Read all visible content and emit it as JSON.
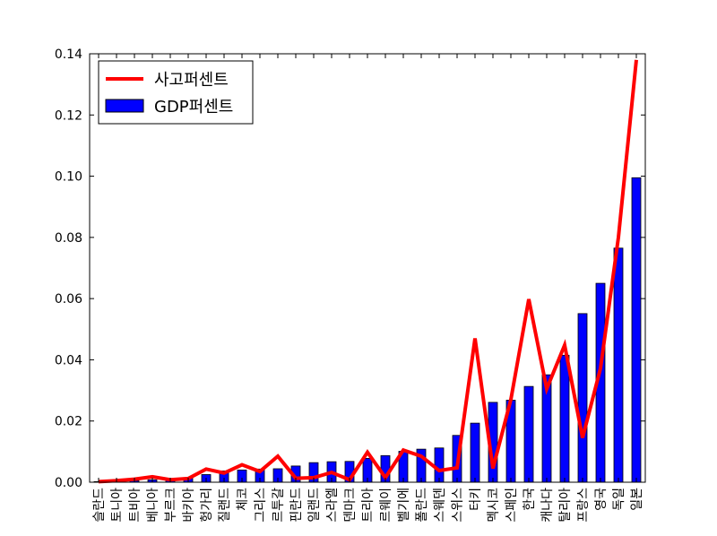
{
  "chart_data": {
    "type": "bar",
    "categories": [
      "슬란드",
      "토니아",
      "트비아",
      "베니아",
      "부르크",
      "바키아",
      "헝가리",
      "질랜드",
      "체코",
      "그리스",
      "르투갈",
      "핀란드",
      "일랜드",
      "스라엘",
      "덴마크",
      "트리아",
      "르웨이",
      "벨기에",
      "폴란드",
      "스웨덴",
      "스위스",
      "터키",
      "멕시코",
      "스페인",
      "한국",
      "캐나다",
      "탈리아",
      "프랑스",
      "영국",
      "독일",
      "일본"
    ],
    "series": [
      {
        "name": "사고퍼센트",
        "type": "line",
        "color": "#ff0000",
        "values": [
          0.0002,
          0.0005,
          0.001,
          0.0018,
          0.0008,
          0.0012,
          0.0043,
          0.003,
          0.0057,
          0.0035,
          0.0085,
          0.0013,
          0.0015,
          0.0032,
          0.0008,
          0.0098,
          0.0015,
          0.0105,
          0.0085,
          0.0038,
          0.0047,
          0.047,
          0.0045,
          0.027,
          0.0598,
          0.0305,
          0.0448,
          0.0145,
          0.0372,
          0.08,
          0.138
        ]
      },
      {
        "name": "GDP퍼센트",
        "type": "bar",
        "color": "#0000ff",
        "values": [
          0.0002,
          0.0003,
          0.0005,
          0.0008,
          0.001,
          0.0015,
          0.0025,
          0.0037,
          0.004,
          0.0043,
          0.0044,
          0.0053,
          0.0064,
          0.0067,
          0.0068,
          0.0078,
          0.0087,
          0.0101,
          0.0108,
          0.0112,
          0.0153,
          0.0193,
          0.0261,
          0.0268,
          0.0313,
          0.0351,
          0.0415,
          0.0551,
          0.065,
          0.0765,
          0.0995
        ]
      }
    ],
    "ylim": [
      0,
      0.14
    ],
    "yticks": [
      {
        "value": 0,
        "label": "0.00"
      },
      {
        "value": 0.02,
        "label": "0.02"
      },
      {
        "value": 0.04,
        "label": "0.04"
      },
      {
        "value": 0.06,
        "label": "0.06"
      },
      {
        "value": 0.08,
        "label": "0.08"
      },
      {
        "value": 0.1,
        "label": "0.10"
      },
      {
        "value": 0.12,
        "label": "0.12"
      },
      {
        "value": 0.14,
        "label": "0.14"
      }
    ],
    "legend": "upper left"
  }
}
